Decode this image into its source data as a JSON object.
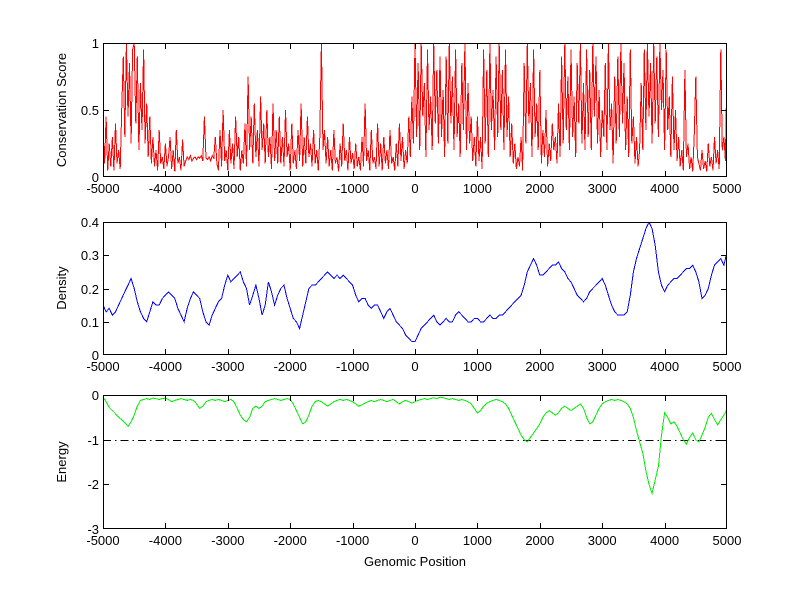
{
  "figure": {
    "background": "#ffffff",
    "axis_color": "#000000",
    "text_color": "#000000"
  },
  "xlabel": "Genomic Position",
  "chart_data": [
    {
      "type": "line",
      "title": "",
      "ylabel": "Conservation Score",
      "xlim": [
        -5000,
        5000
      ],
      "ylim": [
        0,
        1
      ],
      "x_ticks": [
        -5000,
        -4000,
        -3000,
        -2000,
        -1000,
        0,
        1000,
        2000,
        3000,
        4000,
        5000
      ],
      "y_ticks": [
        0,
        0.5,
        1
      ],
      "grid": false,
      "legend": null,
      "series": [
        {
          "name": "conservation-score",
          "color": "#ff0000",
          "x_start": -5000,
          "x_step": 25,
          "values": [
            0.35,
            0.1,
            0.45,
            0.05,
            0.25,
            0.08,
            0.3,
            0.05,
            0.4,
            0.1,
            0.2,
            0.06,
            0.5,
            0.9,
            0.3,
            1.0,
            0.45,
            0.85,
            0.25,
            0.95,
            1.0,
            0.4,
            0.9,
            0.2,
            0.7,
            0.35,
            0.95,
            0.25,
            0.55,
            0.15,
            0.45,
            0.1,
            0.3,
            0.08,
            0.2,
            0.05,
            0.35,
            0.1,
            0.15,
            0.06,
            0.25,
            0.08,
            0.15,
            0.3,
            0.06,
            0.2,
            0.04,
            0.35,
            0.1,
            0.15,
            0.05,
            0.28,
            0.08,
            0.12,
            0.15,
            0.13,
            0.16,
            0.12,
            0.14,
            0.15,
            0.13,
            0.15,
            0.14,
            0.16,
            0.12,
            0.45,
            0.14,
            0.13,
            0.15,
            0.12,
            0.16,
            0.14,
            0.3,
            0.1,
            0.05,
            0.35,
            0.08,
            0.5,
            0.12,
            0.2,
            0.05,
            0.35,
            0.1,
            0.25,
            0.06,
            0.45,
            0.15,
            0.3,
            0.05,
            0.2,
            0.1,
            0.4,
            0.08,
            0.75,
            0.2,
            0.45,
            0.1,
            0.55,
            0.15,
            0.35,
            0.08,
            0.6,
            0.2,
            0.4,
            0.1,
            0.5,
            0.15,
            0.3,
            0.06,
            0.55,
            0.12,
            0.35,
            0.1,
            0.45,
            0.1,
            0.3,
            0.08,
            0.5,
            0.15,
            0.25,
            0.05,
            0.4,
            0.1,
            0.2,
            0.06,
            0.35,
            0.12,
            0.55,
            0.08,
            0.3,
            0.1,
            0.45,
            0.15,
            0.25,
            0.08,
            0.35,
            0.1,
            0.2,
            0.05,
            0.3,
            1.0,
            0.2,
            0.35,
            0.1,
            0.3,
            0.08,
            0.2,
            0.05,
            0.35,
            0.1,
            0.15,
            0.04,
            0.25,
            0.08,
            0.4,
            0.12,
            0.2,
            0.05,
            0.3,
            0.1,
            0.18,
            0.06,
            0.25,
            0.08,
            0.15,
            0.05,
            0.3,
            0.08,
            0.55,
            0.12,
            0.2,
            0.05,
            0.35,
            0.1,
            0.15,
            0.06,
            0.4,
            0.08,
            0.25,
            0.05,
            0.3,
            0.1,
            0.2,
            0.06,
            0.35,
            0.1,
            0.15,
            0.05,
            0.25,
            0.08,
            0.4,
            0.12,
            0.3,
            0.06,
            0.2,
            0.1,
            0.45,
            0.15,
            0.6,
            0.25,
            1.0,
            0.3,
            0.85,
            0.2,
            1.0,
            0.45,
            0.7,
            0.15,
            0.95,
            0.35,
            0.6,
            0.2,
            1.0,
            0.4,
            0.8,
            0.25,
            0.9,
            0.3,
            0.65,
            0.15,
            0.9,
            0.25,
            1.0,
            0.4,
            0.75,
            0.2,
            0.95,
            0.3,
            0.55,
            0.15,
            0.85,
            0.35,
            1.0,
            0.2,
            0.7,
            0.25,
            0.45,
            0.12,
            0.3,
            0.08,
            0.45,
            0.12,
            0.3,
            0.06,
            0.95,
            0.25,
            0.8,
            0.15,
            1.0,
            0.35,
            0.65,
            0.2,
            0.9,
            0.3,
            1.0,
            0.35,
            0.8,
            0.2,
            0.95,
            0.3,
            0.6,
            0.15,
            0.4,
            0.1,
            0.25,
            0.06,
            0.15,
            0.08,
            0.3,
            0.05,
            0.85,
            0.25,
            1.0,
            0.4,
            0.7,
            0.15,
            0.95,
            0.3,
            0.55,
            0.2,
            0.8,
            0.1,
            0.35,
            0.15,
            0.5,
            0.08,
            0.25,
            0.12,
            0.4,
            0.2,
            0.3,
            0.1,
            0.55,
            0.15,
            0.9,
            0.25,
            1.0,
            0.35,
            0.75,
            0.2,
            0.95,
            0.3,
            0.6,
            0.15,
            0.85,
            0.4,
            1.0,
            0.25,
            0.7,
            0.2,
            0.95,
            0.3,
            0.8,
            0.2,
            1.0,
            0.45,
            0.9,
            0.25,
            0.65,
            0.15,
            0.5,
            0.3,
            0.85,
            0.2,
            1.0,
            0.35,
            0.55,
            0.1,
            0.75,
            0.25,
            0.9,
            0.3,
            1.0,
            0.4,
            0.85,
            0.2,
            0.6,
            0.15,
            0.95,
            0.25,
            0.45,
            0.1,
            0.3,
            0.08,
            0.2,
            0.7,
            0.2,
            0.95,
            0.35,
            1.0,
            0.45,
            0.85,
            0.25,
            1.0,
            0.4,
            0.9,
            0.3,
            1.0,
            0.5,
            0.8,
            0.2,
            0.95,
            0.35,
            0.6,
            0.15,
            0.75,
            0.2,
            0.5,
            0.12,
            0.3,
            0.08,
            0.2,
            0.05,
            0.8,
            0.15,
            0.25,
            0.06,
            0.15,
            0.04,
            0.3,
            0.75,
            0.15,
            0.1,
            0.05,
            0.2,
            0.06,
            0.12,
            0.04,
            0.25,
            0.08,
            0.15,
            0.05,
            0.3,
            0.1,
            0.2,
            0.06,
            0.95,
            0.2,
            0.3,
            0.12,
            0.85
          ]
        }
      ]
    },
    {
      "type": "line",
      "title": "",
      "ylabel": "Density",
      "xlim": [
        -5000,
        5000
      ],
      "ylim": [
        0,
        0.4
      ],
      "x_ticks": [
        -5000,
        -4000,
        -3000,
        -2000,
        -1000,
        0,
        1000,
        2000,
        3000,
        4000,
        5000
      ],
      "y_ticks": [
        0,
        0.1,
        0.2,
        0.3,
        0.4
      ],
      "grid": false,
      "legend": null,
      "series": [
        {
          "name": "density",
          "color": "#0000ff",
          "x_start": -5000,
          "x_step": 50,
          "values": [
            0.15,
            0.13,
            0.14,
            0.12,
            0.13,
            0.15,
            0.17,
            0.19,
            0.21,
            0.23,
            0.2,
            0.16,
            0.13,
            0.11,
            0.1,
            0.13,
            0.16,
            0.15,
            0.15,
            0.17,
            0.18,
            0.19,
            0.18,
            0.17,
            0.14,
            0.12,
            0.1,
            0.14,
            0.17,
            0.19,
            0.18,
            0.17,
            0.13,
            0.1,
            0.09,
            0.12,
            0.14,
            0.16,
            0.17,
            0.21,
            0.24,
            0.22,
            0.23,
            0.24,
            0.25,
            0.22,
            0.2,
            0.15,
            0.18,
            0.21,
            0.17,
            0.12,
            0.15,
            0.22,
            0.19,
            0.15,
            0.18,
            0.2,
            0.21,
            0.17,
            0.14,
            0.11,
            0.1,
            0.08,
            0.12,
            0.16,
            0.2,
            0.21,
            0.21,
            0.22,
            0.23,
            0.24,
            0.25,
            0.24,
            0.23,
            0.24,
            0.23,
            0.24,
            0.23,
            0.22,
            0.21,
            0.18,
            0.16,
            0.17,
            0.17,
            0.15,
            0.14,
            0.15,
            0.15,
            0.13,
            0.11,
            0.13,
            0.14,
            0.12,
            0.1,
            0.09,
            0.08,
            0.06,
            0.05,
            0.04,
            0.04,
            0.06,
            0.08,
            0.09,
            0.1,
            0.11,
            0.12,
            0.1,
            0.09,
            0.1,
            0.11,
            0.1,
            0.1,
            0.12,
            0.13,
            0.12,
            0.11,
            0.1,
            0.1,
            0.11,
            0.11,
            0.1,
            0.1,
            0.11,
            0.12,
            0.11,
            0.11,
            0.12,
            0.12,
            0.13,
            0.14,
            0.15,
            0.16,
            0.17,
            0.18,
            0.21,
            0.25,
            0.27,
            0.29,
            0.27,
            0.24,
            0.24,
            0.25,
            0.26,
            0.27,
            0.27,
            0.28,
            0.26,
            0.25,
            0.23,
            0.22,
            0.2,
            0.18,
            0.17,
            0.16,
            0.17,
            0.19,
            0.2,
            0.21,
            0.22,
            0.23,
            0.21,
            0.18,
            0.15,
            0.13,
            0.12,
            0.12,
            0.12,
            0.13,
            0.18,
            0.25,
            0.29,
            0.32,
            0.35,
            0.38,
            0.4,
            0.38,
            0.33,
            0.25,
            0.21,
            0.19,
            0.21,
            0.22,
            0.23,
            0.23,
            0.24,
            0.25,
            0.26,
            0.26,
            0.27,
            0.25,
            0.22,
            0.17,
            0.18,
            0.2,
            0.24,
            0.27,
            0.28,
            0.29,
            0.27,
            0.31
          ]
        }
      ]
    },
    {
      "type": "line",
      "title": "",
      "ylabel": "Energy",
      "xlim": [
        -5000,
        5000
      ],
      "ylim": [
        -3,
        0
      ],
      "x_ticks": [
        -5000,
        -4000,
        -3000,
        -2000,
        -1000,
        0,
        1000,
        2000,
        3000,
        4000,
        5000
      ],
      "y_ticks": [
        -3,
        -2,
        -1,
        0
      ],
      "grid": false,
      "legend": null,
      "ref_lines": [
        {
          "name": "energy-threshold",
          "y": -1,
          "color": "#000000",
          "style": "dash-dot"
        }
      ],
      "series": [
        {
          "name": "energy",
          "color": "#00ee00",
          "x_start": -5000,
          "x_step": 50,
          "values": [
            -0.05,
            -0.15,
            -0.28,
            -0.35,
            -0.42,
            -0.5,
            -0.55,
            -0.62,
            -0.7,
            -0.6,
            -0.45,
            -0.25,
            -0.12,
            -0.1,
            -0.08,
            -0.1,
            -0.07,
            -0.08,
            -0.1,
            -0.08,
            -0.07,
            -0.1,
            -0.15,
            -0.12,
            -0.1,
            -0.08,
            -0.1,
            -0.12,
            -0.1,
            -0.12,
            -0.2,
            -0.3,
            -0.25,
            -0.15,
            -0.12,
            -0.1,
            -0.12,
            -0.1,
            -0.12,
            -0.15,
            -0.12,
            -0.1,
            -0.15,
            -0.3,
            -0.45,
            -0.55,
            -0.6,
            -0.5,
            -0.3,
            -0.25,
            -0.3,
            -0.25,
            -0.15,
            -0.12,
            -0.1,
            -0.08,
            -0.1,
            -0.12,
            -0.1,
            -0.08,
            -0.1,
            -0.2,
            -0.35,
            -0.5,
            -0.65,
            -0.6,
            -0.45,
            -0.25,
            -0.15,
            -0.12,
            -0.15,
            -0.2,
            -0.25,
            -0.2,
            -0.15,
            -0.12,
            -0.1,
            -0.12,
            -0.1,
            -0.12,
            -0.15,
            -0.2,
            -0.25,
            -0.22,
            -0.18,
            -0.15,
            -0.12,
            -0.15,
            -0.12,
            -0.1,
            -0.12,
            -0.15,
            -0.12,
            -0.1,
            -0.15,
            -0.2,
            -0.15,
            -0.12,
            -0.15,
            -0.18,
            -0.15,
            -0.12,
            -0.1,
            -0.08,
            -0.1,
            -0.08,
            -0.06,
            -0.08,
            -0.05,
            -0.06,
            -0.08,
            -0.1,
            -0.08,
            -0.1,
            -0.12,
            -0.1,
            -0.12,
            -0.15,
            -0.2,
            -0.3,
            -0.4,
            -0.35,
            -0.25,
            -0.18,
            -0.15,
            -0.12,
            -0.1,
            -0.12,
            -0.15,
            -0.2,
            -0.3,
            -0.45,
            -0.6,
            -0.75,
            -0.9,
            -1.0,
            -1.05,
            -0.95,
            -0.85,
            -0.75,
            -0.65,
            -0.5,
            -0.4,
            -0.35,
            -0.4,
            -0.45,
            -0.4,
            -0.3,
            -0.25,
            -0.3,
            -0.35,
            -0.3,
            -0.25,
            -0.2,
            -0.3,
            -0.5,
            -0.65,
            -0.6,
            -0.45,
            -0.3,
            -0.2,
            -0.15,
            -0.12,
            -0.1,
            -0.12,
            -0.1,
            -0.12,
            -0.15,
            -0.2,
            -0.3,
            -0.5,
            -0.8,
            -1.05,
            -1.3,
            -1.7,
            -2.0,
            -2.2,
            -1.9,
            -1.6,
            -0.9,
            -0.4,
            -0.5,
            -0.65,
            -0.6,
            -0.7,
            -0.85,
            -1.0,
            -1.1,
            -0.95,
            -0.85,
            -1.0,
            -1.05,
            -0.9,
            -0.72,
            -0.5,
            -0.41,
            -0.55,
            -0.67,
            -0.55,
            -0.45,
            -0.32
          ]
        }
      ]
    }
  ]
}
